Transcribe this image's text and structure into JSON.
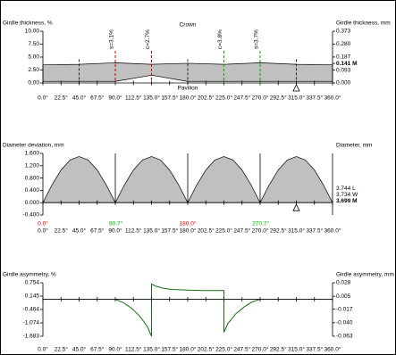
{
  "chart_data": [
    {
      "type": "area",
      "title": "Girdle thickness, %",
      "y2_title": "Girdle thickness, mm",
      "top_label": "Crown",
      "bottom_label": "Pavilion",
      "x": [
        0,
        45,
        90,
        135,
        180,
        225,
        270,
        315,
        360
      ],
      "upper": [
        3.5,
        3.6,
        3.9,
        3.6,
        3.8,
        3.6,
        3.9,
        3.6,
        3.5
      ],
      "lower": [
        0.3,
        0.3,
        0.3,
        1.5,
        0.3,
        0.3,
        0.3,
        0.3,
        0.3
      ],
      "color": "#c0c0c0",
      "xlim": [
        0,
        360
      ],
      "xticks": [
        {
          "value": 0,
          "label": "0.0°"
        },
        {
          "value": 22.5,
          "label": "22.5°"
        },
        {
          "value": 45,
          "label": "45.0°"
        },
        {
          "value": 67.5,
          "label": "67.5°"
        },
        {
          "value": 90,
          "label": "90.0°"
        },
        {
          "value": 112.5,
          "label": "112.5°"
        },
        {
          "value": 135,
          "label": "135.0°"
        },
        {
          "value": 157.5,
          "label": "157.5°"
        },
        {
          "value": 180,
          "label": "180.0°"
        },
        {
          "value": 202.5,
          "label": "202.5°"
        },
        {
          "value": 225,
          "label": "225.0°"
        },
        {
          "value": 247.5,
          "label": "247.5°"
        },
        {
          "value": 270,
          "label": "270.0°"
        },
        {
          "value": 292.5,
          "label": "292.5°"
        },
        {
          "value": 315,
          "label": "315.0°"
        },
        {
          "value": 337.5,
          "label": "337.5°"
        },
        {
          "value": 360,
          "label": "360.0°"
        }
      ],
      "ylim": [
        0,
        10
      ],
      "yticks": [
        {
          "value": 10,
          "label": "10.00"
        },
        {
          "value": 7.5,
          "label": "7.50"
        },
        {
          "value": 5,
          "label": "5.00"
        },
        {
          "value": 2.5,
          "label": "2.50"
        },
        {
          "value": 0,
          "label": "0.00"
        }
      ],
      "y2lim": [
        0,
        0.373
      ],
      "y2ticks": [
        {
          "value": 0.373,
          "label": "0.373"
        },
        {
          "value": 0.28,
          "label": "0.280"
        },
        {
          "value": 0.187,
          "label": "0.187"
        },
        {
          "value": 0.141,
          "label": "0.141 M",
          "emphasis": true
        },
        {
          "value": 0.093,
          "label": "0.093"
        },
        {
          "value": 0,
          "label": "0.000"
        }
      ],
      "dividers": [
        45,
        180,
        315
      ],
      "annotations": [
        {
          "x": 90,
          "text": "s=3.1%",
          "color": "#cc0000"
        },
        {
          "x": 135,
          "text": "c=2.7%",
          "color": "#cc0000"
        },
        {
          "x": 225,
          "text": "c=3.8%",
          "color": "#00aa00"
        },
        {
          "x": 270,
          "text": "s=3.7%",
          "color": "#00aa00"
        }
      ],
      "triangle_x": 315
    },
    {
      "type": "area",
      "title": "Diameter deviation, mm",
      "y2_title": "Diameter, mm",
      "x": [
        0,
        11.25,
        22.5,
        33.75,
        45,
        56.25,
        67.5,
        78.75,
        90,
        101.25,
        112.5,
        123.75,
        135,
        146.25,
        157.5,
        168.75,
        180,
        191.25,
        202.5,
        213.75,
        225,
        236.25,
        247.5,
        258.75,
        270,
        281.25,
        292.5,
        303.75,
        315,
        326.25,
        337.5,
        348.75,
        360
      ],
      "upper": [
        0,
        0.574,
        1.061,
        1.386,
        1.5,
        1.386,
        1.061,
        0.574,
        0,
        0.574,
        1.061,
        1.386,
        1.5,
        1.386,
        1.061,
        0.574,
        0,
        0.574,
        1.061,
        1.386,
        1.5,
        1.386,
        1.061,
        0.574,
        0,
        0.574,
        1.061,
        1.386,
        1.5,
        1.386,
        1.061,
        0.574,
        0
      ],
      "color": "#c0c0c0",
      "xlim": [
        0,
        360
      ],
      "xticks": [
        {
          "value": 0,
          "label": "0.0°"
        },
        {
          "value": 22.5,
          "label": "22.5°"
        },
        {
          "value": 45,
          "label": "45.0°"
        },
        {
          "value": 67.5,
          "label": "67.5°"
        },
        {
          "value": 90,
          "label": "90.0°"
        },
        {
          "value": 112.5,
          "label": "112.5°"
        },
        {
          "value": 135,
          "label": "135.0°"
        },
        {
          "value": 157.5,
          "label": "157.5°"
        },
        {
          "value": 180,
          "label": "180.0°"
        },
        {
          "value": 202.5,
          "label": "202.5°"
        },
        {
          "value": 225,
          "label": "225.0°"
        },
        {
          "value": 247.5,
          "label": "247.5°"
        },
        {
          "value": 270,
          "label": "270.0°"
        },
        {
          "value": 292.5,
          "label": "292.5°"
        },
        {
          "value": 315,
          "label": "315.0°"
        },
        {
          "value": 337.5,
          "label": "337.5°"
        },
        {
          "value": 360,
          "label": "360.0°"
        }
      ],
      "ylim": [
        -0.4,
        1.6
      ],
      "yticks": [
        {
          "value": 1.6,
          "label": "1.600"
        },
        {
          "value": 1.2,
          "label": "1.200"
        },
        {
          "value": 0.8,
          "label": "0.800"
        },
        {
          "value": 0.4,
          "label": "0.400"
        },
        {
          "value": 0,
          "label": "0.000"
        },
        {
          "value": -0.4,
          "label": "-0.400"
        }
      ],
      "side_labels": [
        {
          "text": "3.744 L"
        },
        {
          "text": "3.734 W"
        },
        {
          "text": "3.699 M",
          "emphasis": true
        }
      ],
      "solid_dividers": [
        90,
        180,
        270
      ],
      "angle_labels": [
        {
          "x": 0,
          "text": "0.0°",
          "color": "#ee0000"
        },
        {
          "x": 90.7,
          "text": "90.7°",
          "color": "#00bb00"
        },
        {
          "x": 180,
          "text": "180.0°",
          "color": "#ee0000"
        },
        {
          "x": 270.7,
          "text": "270.7°",
          "color": "#00bb00"
        }
      ],
      "triangle_x": 315
    },
    {
      "type": "line",
      "title": "Girdle asymmetry, %",
      "y2_title": "Girdle asymmetry, mm",
      "x": [
        90,
        100,
        110,
        120,
        130,
        135,
        135,
        140,
        150,
        160,
        180,
        200,
        225,
        225,
        230,
        240,
        250,
        260,
        270
      ],
      "values": [
        0,
        -0.15,
        -0.4,
        -0.75,
        -1.25,
        -1.683,
        0.7,
        0.6,
        0.5,
        0.45,
        0.42,
        0.4,
        0.4,
        -1.5,
        -1.1,
        -0.65,
        -0.35,
        -0.12,
        0
      ],
      "color": "#1a6b1a",
      "xlim": [
        0,
        360
      ],
      "xticks": [
        {
          "value": 0,
          "label": "0.0°"
        },
        {
          "value": 22.5,
          "label": "22.5°"
        },
        {
          "value": 45,
          "label": "45.0°"
        },
        {
          "value": 67.5,
          "label": "67.5°"
        },
        {
          "value": 90,
          "label": "90.0°"
        },
        {
          "value": 112.5,
          "label": "112.5°"
        },
        {
          "value": 135,
          "label": "135.0°"
        },
        {
          "value": 157.5,
          "label": "157.5°"
        },
        {
          "value": 180,
          "label": "180.0°"
        },
        {
          "value": 202.5,
          "label": "202.5°"
        },
        {
          "value": 225,
          "label": "225.0°"
        },
        {
          "value": 247.5,
          "label": "247.5°"
        },
        {
          "value": 270,
          "label": "270.0°"
        },
        {
          "value": 292.5,
          "label": "292.5°"
        },
        {
          "value": 315,
          "label": "315.0°"
        },
        {
          "value": 337.5,
          "label": "337.5°"
        },
        {
          "value": 360,
          "label": "360.0°"
        }
      ],
      "ylim": [
        -1.683,
        0.754
      ],
      "yticks": [
        {
          "value": 0.754,
          "label": "0.754"
        },
        {
          "value": 0.145,
          "label": "0.145"
        },
        {
          "value": -0.464,
          "label": "-0.464"
        },
        {
          "value": -1.074,
          "label": "-1.074"
        },
        {
          "value": -1.683,
          "label": "-1.683"
        }
      ],
      "y2lim": [
        -0.063,
        0.028
      ],
      "y2ticks": [
        {
          "value": 0.028,
          "label": "0.028"
        },
        {
          "value": 0.005,
          "label": "0.005"
        },
        {
          "value": -0.017,
          "label": "-0.017"
        },
        {
          "value": -0.04,
          "label": "-0.040"
        },
        {
          "value": -0.063,
          "label": "-0.063"
        }
      ]
    }
  ]
}
